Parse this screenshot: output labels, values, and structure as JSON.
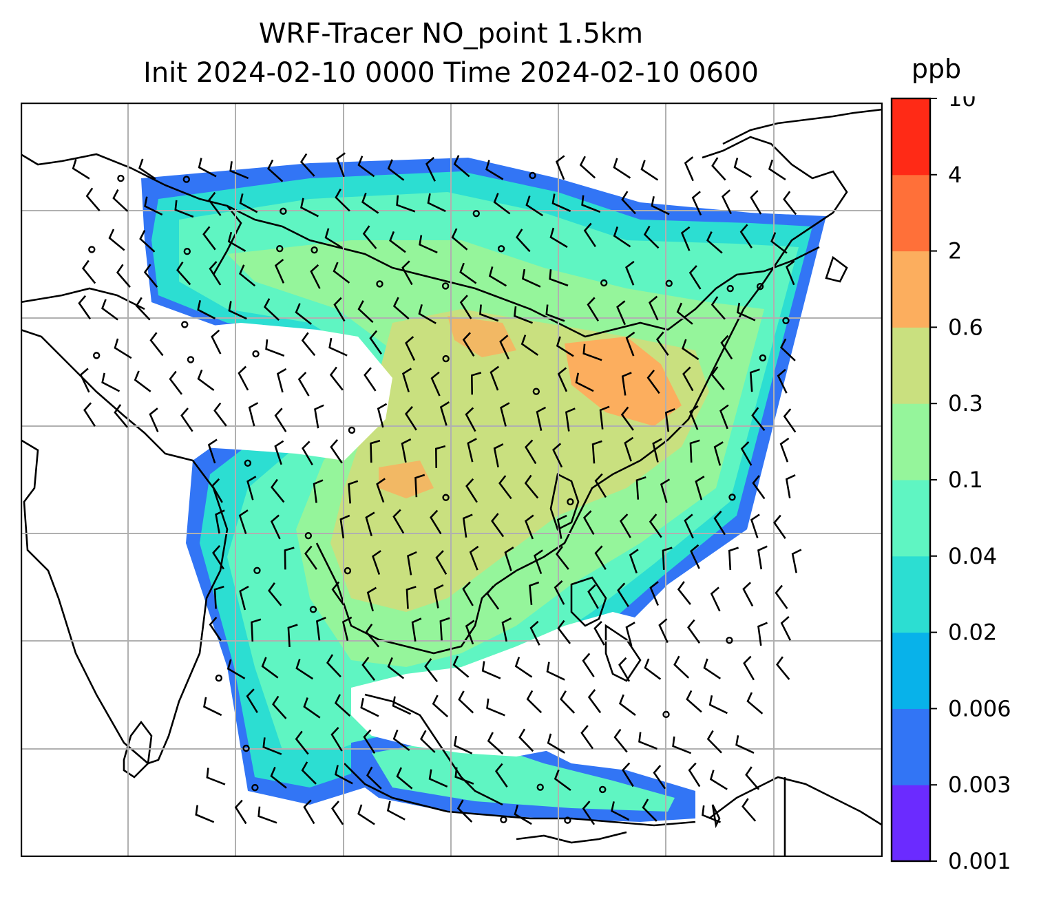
{
  "title": {
    "line1": "WRF-Tracer NO_point 1.5km",
    "line2": "Init 2024-02-10 0000 Time 2024-02-10 0600"
  },
  "colorbar": {
    "unit": "ppb",
    "ticks": [
      "0.001",
      "0.003",
      "0.006",
      "0.02",
      "0.04",
      "0.1",
      "0.3",
      "0.6",
      "2",
      "4",
      "10"
    ],
    "colors": [
      "#6b2bff",
      "#3275f5",
      "#08b2ea",
      "#2cded2",
      "#5ff5c2",
      "#95f59b",
      "#c9e07f",
      "#fcae5e",
      "#ff7039",
      "#ff2a16"
    ]
  },
  "map": {
    "field": "NO_point tracer concentration",
    "overlay_icons": [
      "wind-barb-icon",
      "calm-circle-icon"
    ],
    "gridlines": true
  }
}
